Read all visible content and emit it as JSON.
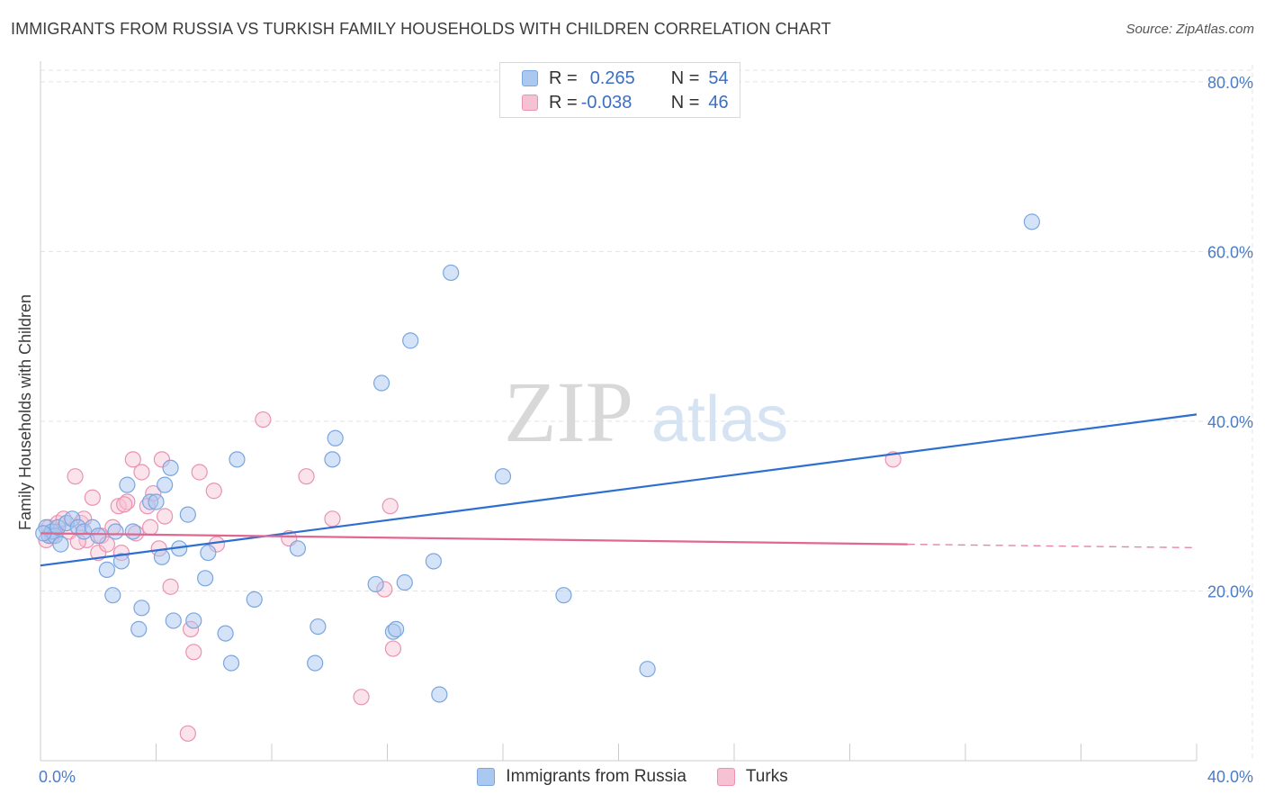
{
  "title": "IMMIGRANTS FROM RUSSIA VS TURKISH FAMILY HOUSEHOLDS WITH CHILDREN CORRELATION CHART",
  "source": "Source: ZipAtlas.com",
  "watermark": {
    "zip": "ZIP",
    "atlas": "atlas"
  },
  "legend": {
    "rows": [
      {
        "r_label": "R =",
        "r_value": "0.265",
        "n_label": "N =",
        "n_value": "54"
      },
      {
        "r_label": "R =",
        "r_value": "-0.038",
        "n_label": "N =",
        "n_value": "46"
      }
    ]
  },
  "bottom_legend": [
    "Immigrants from Russia",
    "Turks"
  ],
  "colors": {
    "blue_fill": "#aac8f0",
    "blue_stroke": "#7aa6e0",
    "blue_line": "#2d6fd0",
    "pink_fill": "#f6c1d2",
    "pink_stroke": "#ea92b0",
    "pink_line": "#e06890",
    "tick_blue": "#4a7cc7",
    "grid": "#e3e3e3"
  },
  "chart_data": {
    "type": "scatter",
    "title": "IMMIGRANTS FROM RUSSIA VS TURKISH FAMILY HOUSEHOLDS WITH CHILDREN CORRELATION CHART",
    "xlabel": "",
    "ylabel": "Family Households with Children",
    "xlim": [
      0,
      40
    ],
    "ylim": [
      0,
      82
    ],
    "x_tick_labels": [
      "0.0%",
      "40.0%"
    ],
    "y_ticks": [
      20,
      40,
      60,
      80
    ],
    "y_tick_labels": [
      "20.0%",
      "40.0%",
      "60.0%",
      "80.0%"
    ],
    "grid": true,
    "legend_position": "top-center",
    "series": [
      {
        "name": "Immigrants from Russia",
        "R": 0.265,
        "N": 54,
        "trend": {
          "x": [
            0,
            40
          ],
          "y": [
            23.0,
            40.8
          ]
        },
        "points": [
          [
            0.2,
            27.5
          ],
          [
            0.3,
            26.5
          ],
          [
            0.4,
            27.0
          ],
          [
            0.5,
            26.5
          ],
          [
            0.6,
            27.5
          ],
          [
            0.7,
            25.5
          ],
          [
            0.9,
            28.0
          ],
          [
            1.1,
            28.5
          ],
          [
            1.3,
            27.5
          ],
          [
            1.5,
            27.0
          ],
          [
            1.8,
            27.5
          ],
          [
            2.0,
            26.5
          ],
          [
            2.3,
            22.5
          ],
          [
            2.5,
            19.5
          ],
          [
            2.6,
            27.0
          ],
          [
            2.8,
            23.5
          ],
          [
            3.0,
            32.5
          ],
          [
            3.2,
            27.0
          ],
          [
            3.5,
            18.0
          ],
          [
            3.4,
            15.5
          ],
          [
            3.8,
            30.5
          ],
          [
            4.0,
            30.5
          ],
          [
            4.2,
            24.0
          ],
          [
            4.3,
            32.5
          ],
          [
            4.5,
            34.5
          ],
          [
            4.6,
            16.5
          ],
          [
            4.8,
            25.0
          ],
          [
            5.1,
            29.0
          ],
          [
            5.3,
            16.5
          ],
          [
            5.7,
            21.5
          ],
          [
            5.8,
            24.5
          ],
          [
            6.4,
            15.0
          ],
          [
            6.6,
            11.5
          ],
          [
            6.8,
            35.5
          ],
          [
            7.4,
            19.0
          ],
          [
            8.9,
            25.0
          ],
          [
            9.5,
            11.5
          ],
          [
            9.6,
            15.8
          ],
          [
            10.1,
            35.5
          ],
          [
            10.2,
            38.0
          ],
          [
            11.6,
            20.8
          ],
          [
            11.8,
            44.5
          ],
          [
            12.2,
            15.2
          ],
          [
            12.3,
            15.5
          ],
          [
            12.6,
            21.0
          ],
          [
            12.8,
            49.5
          ],
          [
            13.6,
            23.5
          ],
          [
            13.8,
            7.8
          ],
          [
            14.2,
            57.5
          ],
          [
            16.0,
            33.5
          ],
          [
            18.1,
            19.5
          ],
          [
            21.0,
            10.8
          ],
          [
            34.3,
            63.5
          ],
          [
            0.1,
            26.8
          ]
        ]
      },
      {
        "name": "Turks",
        "R": -0.038,
        "N": 46,
        "trend": {
          "x": [
            0,
            30
          ],
          "y": [
            26.8,
            25.5
          ]
        },
        "trend_dashed": {
          "x": [
            30,
            40
          ],
          "y": [
            25.5,
            25.1
          ]
        },
        "points": [
          [
            0.2,
            26.0
          ],
          [
            0.3,
            27.5
          ],
          [
            0.4,
            26.5
          ],
          [
            0.6,
            28.0
          ],
          [
            0.8,
            28.5
          ],
          [
            1.0,
            27.0
          ],
          [
            1.2,
            33.5
          ],
          [
            1.4,
            28.0
          ],
          [
            1.5,
            28.5
          ],
          [
            1.6,
            26.0
          ],
          [
            1.8,
            31.0
          ],
          [
            2.0,
            24.5
          ],
          [
            2.1,
            26.5
          ],
          [
            2.3,
            25.5
          ],
          [
            2.5,
            27.5
          ],
          [
            2.7,
            30.0
          ],
          [
            2.8,
            24.5
          ],
          [
            3.0,
            30.5
          ],
          [
            3.2,
            35.5
          ],
          [
            3.3,
            26.8
          ],
          [
            3.5,
            34.0
          ],
          [
            3.7,
            30.0
          ],
          [
            3.8,
            27.5
          ],
          [
            3.9,
            31.5
          ],
          [
            4.1,
            25.0
          ],
          [
            4.2,
            35.5
          ],
          [
            4.3,
            28.8
          ],
          [
            4.5,
            20.5
          ],
          [
            5.2,
            15.5
          ],
          [
            5.3,
            12.8
          ],
          [
            5.5,
            34.0
          ],
          [
            6.0,
            31.8
          ],
          [
            6.1,
            25.5
          ],
          [
            5.1,
            3.2
          ],
          [
            7.7,
            40.2
          ],
          [
            8.6,
            26.2
          ],
          [
            9.2,
            33.5
          ],
          [
            10.1,
            28.5
          ],
          [
            11.1,
            7.5
          ],
          [
            11.9,
            20.2
          ],
          [
            12.2,
            13.2
          ],
          [
            12.1,
            30.0
          ],
          [
            29.5,
            35.5
          ],
          [
            0.5,
            27.0
          ],
          [
            1.3,
            25.8
          ],
          [
            2.9,
            30.2
          ]
        ]
      }
    ]
  }
}
